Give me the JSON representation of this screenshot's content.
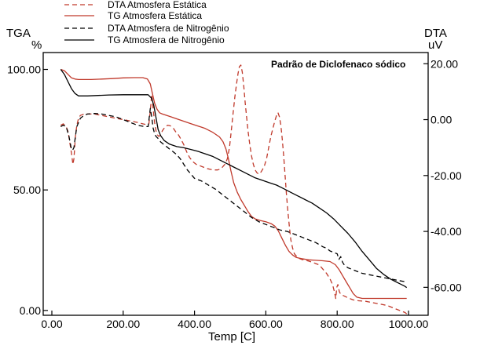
{
  "chart_data": {
    "type": "line",
    "title": "",
    "annotation": "Padrão de Diclofenaco sódico",
    "xlabel": "Temp [C]",
    "ylabel_left": "TGA",
    "ylabel_left_unit": "%",
    "ylabel_right": "DTA",
    "ylabel_right_unit": "uV",
    "xlim": [
      0,
      1000
    ],
    "ylim_left": [
      -2,
      107
    ],
    "ylim_right": [
      -70,
      24
    ],
    "x_ticks": [
      0,
      200,
      400,
      600,
      800,
      1000
    ],
    "x_tick_labels": [
      "0.00",
      "200.00",
      "400.00",
      "600.00",
      "800.00",
      "1000.00"
    ],
    "y_left_ticks": [
      0,
      50,
      100
    ],
    "y_left_tick_labels": [
      "0.00",
      "50.00",
      "100.00"
    ],
    "y_right_ticks": [
      20,
      0,
      -20,
      -40,
      -60
    ],
    "y_right_tick_labels": [
      "20.00",
      "0.00",
      "-20.00",
      "-40.00",
      "-60.00"
    ],
    "grid": false,
    "legend_position": "top-left",
    "series": [
      {
        "name": "DTA Atmosfera Estática",
        "axis": "right",
        "color": "#c0392b",
        "style": "dashed",
        "x": [
          25,
          32,
          40,
          46,
          50,
          55,
          59,
          62,
          66,
          70,
          75,
          80,
          90,
          105,
          120,
          140,
          160,
          180,
          200,
          220,
          240,
          255,
          265,
          272,
          276,
          280,
          284,
          288,
          292,
          296,
          300,
          305,
          310,
          318,
          325,
          332,
          340,
          348,
          355,
          362,
          370,
          378,
          386,
          395,
          405,
          415,
          425,
          435,
          445,
          455,
          465,
          475,
          485,
          492,
          498,
          503,
          508,
          513,
          518,
          522,
          526,
          530,
          534,
          538,
          542,
          546,
          550,
          555,
          560,
          565,
          570,
          575,
          580,
          585,
          590,
          596,
          602,
          608,
          614,
          620,
          625,
          630,
          634,
          638,
          642,
          646,
          650,
          654,
          658,
          662,
          666,
          670,
          675,
          680,
          690,
          700,
          710,
          720,
          730,
          740,
          750,
          760,
          770,
          780,
          787,
          792,
          796,
          799,
          802,
          806,
          810,
          818,
          826,
          835,
          845,
          860,
          880,
          900,
          920,
          940,
          960,
          980,
          990,
          995
        ],
        "values": [
          -2.0,
          -1.5,
          -2.5,
          -4.5,
          -8.0,
          -12.0,
          -16.0,
          -14.0,
          -6.0,
          -2.0,
          0.5,
          1.5,
          2.0,
          2.0,
          2.0,
          1.5,
          1.0,
          0.5,
          0.0,
          -0.5,
          -1.0,
          -1.5,
          -1.8,
          -1.5,
          3.0,
          9.0,
          4.0,
          -1.0,
          -4.0,
          -5.5,
          -6.0,
          -5.5,
          -4.0,
          -2.5,
          -2.0,
          -2.2,
          -3.0,
          -4.5,
          -5.5,
          -7.0,
          -9.0,
          -11.5,
          -13.5,
          -15.0,
          -16.0,
          -16.5,
          -17.0,
          -17.5,
          -17.8,
          -18.0,
          -18.0,
          -17.5,
          -16.0,
          -14.0,
          -10.0,
          -4.0,
          2.0,
          8.0,
          13.0,
          16.5,
          19.0,
          19.5,
          17.0,
          12.0,
          6.0,
          1.0,
          -4.0,
          -9.0,
          -13.0,
          -16.0,
          -18.0,
          -19.0,
          -19.5,
          -19.0,
          -18.0,
          -16.5,
          -14.0,
          -10.0,
          -6.0,
          -3.0,
          -0.5,
          1.5,
          2.5,
          1.0,
          -2.0,
          -7.0,
          -13.0,
          -20.0,
          -27.0,
          -33.0,
          -38.5,
          -43.0,
          -46.0,
          -48.0,
          -49.5,
          -50.0,
          -50.3,
          -50.6,
          -51.0,
          -51.5,
          -52.0,
          -53.5,
          -55.0,
          -57.0,
          -59.0,
          -61.5,
          -64.0,
          -60.0,
          -59.0,
          -61.5,
          -62.5,
          -63.0,
          -63.5,
          -64.0,
          -64.5,
          -64.8,
          -65.0,
          -65.5,
          -66.0,
          -66.5,
          -67.5,
          -68.5,
          -69.0,
          -69.5
        ]
      },
      {
        "name": "TG Atmosfera Estática",
        "axis": "left",
        "color": "#c0392b",
        "style": "solid",
        "x": [
          25,
          35,
          45,
          55,
          65,
          75,
          90,
          110,
          140,
          170,
          200,
          230,
          255,
          268,
          276,
          282,
          288,
          295,
          302,
          310,
          320,
          335,
          350,
          370,
          390,
          410,
          430,
          450,
          470,
          480,
          488,
          495,
          502,
          510,
          520,
          530,
          540,
          550,
          560,
          570,
          585,
          600,
          615,
          625,
          635,
          645,
          655,
          665,
          675,
          685,
          700,
          720,
          740,
          760,
          780,
          795,
          805,
          815,
          825,
          835,
          845,
          855,
          870,
          900,
          940,
          980,
          995
        ],
        "values": [
          100.0,
          99.5,
          98.0,
          96.5,
          96.0,
          95.8,
          95.8,
          95.8,
          96.0,
          96.2,
          96.5,
          96.6,
          96.6,
          96.0,
          94.0,
          90.0,
          86.0,
          83.5,
          82.0,
          81.5,
          81.0,
          80.3,
          79.5,
          78.5,
          77.5,
          76.5,
          75.5,
          74.0,
          72.0,
          70.0,
          67.0,
          63.0,
          58.0,
          53.0,
          49.0,
          46.0,
          43.5,
          41.0,
          39.0,
          38.0,
          37.3,
          36.8,
          36.0,
          35.0,
          33.0,
          30.0,
          27.0,
          24.5,
          23.0,
          22.0,
          21.5,
          21.0,
          20.8,
          20.6,
          20.3,
          19.0,
          17.0,
          14.5,
          12.0,
          9.5,
          7.0,
          5.5,
          5.0,
          5.0,
          5.0,
          5.0,
          5.0
        ]
      },
      {
        "name": "DTA Atmosfera de Nitrogênio",
        "axis": "right",
        "color": "#000000",
        "style": "dashed",
        "x": [
          25,
          32,
          40,
          48,
          54,
          58,
          62,
          66,
          70,
          80,
          90,
          100,
          120,
          140,
          160,
          180,
          200,
          220,
          240,
          260,
          270,
          276,
          280,
          284,
          288,
          292,
          296,
          300,
          305,
          310,
          320,
          330,
          340,
          350,
          360,
          370,
          380,
          390,
          400,
          420,
          440,
          460,
          480,
          500,
          520,
          540,
          560,
          580,
          600,
          620,
          640,
          660,
          680,
          700,
          720,
          740,
          760,
          770,
          780,
          790,
          800,
          805,
          810,
          815,
          820,
          830,
          840,
          850,
          870,
          890,
          910,
          930,
          950,
          970,
          990,
          995
        ],
        "values": [
          -2.5,
          -2.0,
          -2.5,
          -6.0,
          -10.0,
          -11.0,
          -10.0,
          -6.0,
          -2.5,
          0.5,
          1.5,
          2.0,
          2.2,
          2.0,
          1.5,
          1.0,
          0.0,
          -1.0,
          -2.0,
          -2.5,
          -2.5,
          4.0,
          1.0,
          -3.0,
          -5.0,
          -6.0,
          -6.5,
          -7.0,
          -8.0,
          -8.5,
          -9.5,
          -10.5,
          -11.5,
          -12.5,
          -14.0,
          -16.0,
          -18.0,
          -19.5,
          -21.0,
          -22.0,
          -23.5,
          -25.0,
          -27.0,
          -29.0,
          -31.0,
          -33.0,
          -35.0,
          -36.5,
          -37.5,
          -38.5,
          -39.5,
          -40.0,
          -41.0,
          -42.0,
          -43.0,
          -44.0,
          -45.5,
          -46.0,
          -47.0,
          -47.5,
          -48.0,
          -50.0,
          -49.0,
          -51.0,
          -52.0,
          -53.0,
          -53.5,
          -54.0,
          -55.0,
          -55.5,
          -56.0,
          -56.5,
          -57.0,
          -57.5,
          -58.0,
          -58.0
        ]
      },
      {
        "name": "TG Atmosfera de Nitrogênio",
        "axis": "left",
        "color": "#000000",
        "style": "solid",
        "x": [
          25,
          35,
          45,
          55,
          65,
          75,
          85,
          100,
          130,
          160,
          200,
          240,
          270,
          280,
          286,
          292,
          298,
          305,
          315,
          330,
          350,
          370,
          390,
          410,
          430,
          450,
          470,
          490,
          510,
          530,
          550,
          570,
          590,
          610,
          630,
          650,
          670,
          690,
          710,
          730,
          750,
          770,
          790,
          810,
          830,
          850,
          870,
          890,
          910,
          930,
          950,
          970,
          990,
          995
        ],
        "values": [
          100.0,
          98.0,
          95.0,
          92.0,
          90.0,
          89.0,
          89.0,
          89.0,
          89.2,
          89.4,
          89.5,
          89.5,
          89.5,
          88.0,
          85.0,
          80.0,
          75.0,
          72.5,
          70.5,
          69.0,
          68.0,
          67.5,
          66.8,
          66.0,
          65.0,
          64.0,
          62.5,
          61.0,
          59.5,
          58.0,
          56.5,
          55.0,
          54.0,
          53.0,
          52.0,
          50.5,
          49.0,
          47.5,
          46.0,
          44.5,
          42.5,
          40.5,
          38.0,
          35.0,
          32.0,
          28.5,
          24.5,
          21.0,
          17.5,
          15.0,
          13.0,
          11.5,
          10.0,
          9.5
        ]
      }
    ]
  }
}
